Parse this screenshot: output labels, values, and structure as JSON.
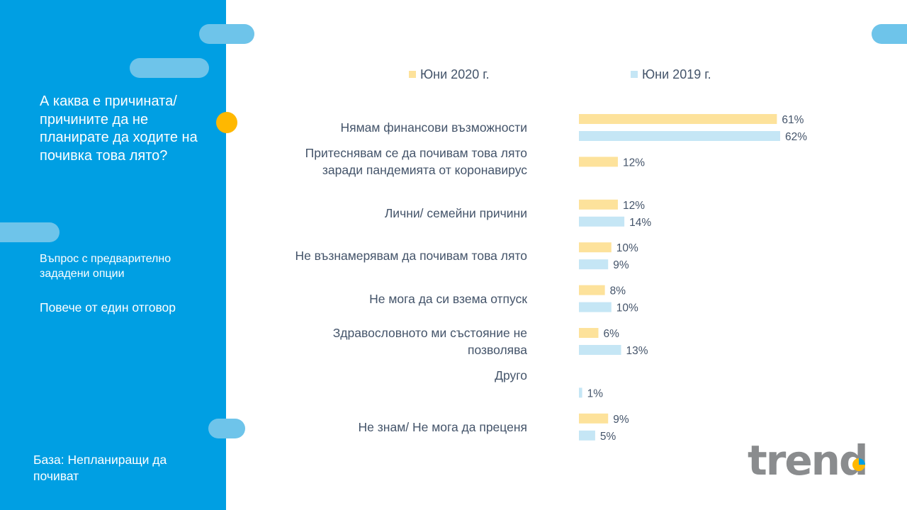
{
  "sidebar": {
    "question": "А каква е причината/ причините да не планирате да ходите на почивка това лято?",
    "subnote": "Въпрос с предварително зададени опции",
    "multi_answer": "Повече от един отговор",
    "base": "База: Непланиращи да почиват"
  },
  "brand": {
    "logo_text": "trend"
  },
  "colors": {
    "sidebar": "#009fe3",
    "pill": "#6ec4ea",
    "accent_dot": "#ffb800",
    "series_2020": "#fde29b",
    "series_2019": "#c5e6f5",
    "text": "#44546a"
  },
  "chart_data": {
    "type": "bar",
    "orientation": "horizontal",
    "categories": [
      "Нямам финансови възможности",
      "Притеснявам се да почивам това лято\nзаради пандемията от коронавирус",
      "Лични/ семейни причини",
      "Не възнамерявам да почивам това лято",
      "Не мога да си взема отпуск",
      "Здравословното ми състояние не\nпозволява",
      "Друго",
      "Не знам/ Не мога да преценя"
    ],
    "series": [
      {
        "name": "Юни 2020 г.",
        "values": [
          61,
          12,
          12,
          10,
          8,
          6,
          null,
          9
        ]
      },
      {
        "name": "Юни 2019 г.",
        "values": [
          62,
          null,
          14,
          9,
          10,
          13,
          1,
          5
        ]
      }
    ],
    "value_suffix": "%",
    "legend_position": "top",
    "grid": false
  }
}
